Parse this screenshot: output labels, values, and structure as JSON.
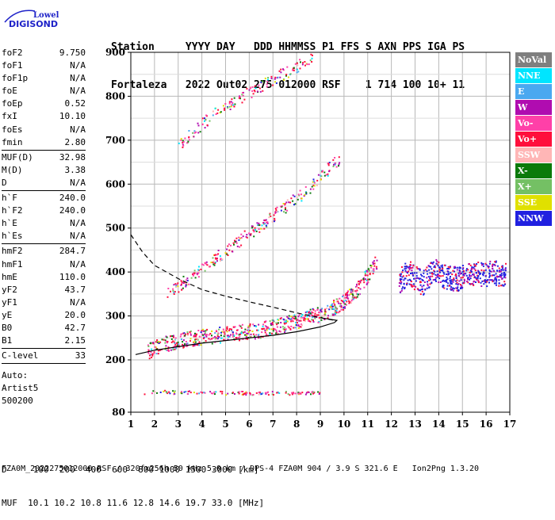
{
  "logo": {
    "line1": "Lowell",
    "line2": "DIGISONDE",
    "color": "#1e22c8"
  },
  "header": {
    "row1": [
      "Station",
      "YYYY",
      "DAY",
      "DDD",
      "HHMMSS",
      "P1",
      "FFS",
      "S",
      "AXN",
      "PPS",
      "IGA",
      "PS"
    ],
    "row2": [
      "Fortaleza",
      "2022",
      "Out02",
      "275",
      "012000",
      "RSF",
      "",
      "1",
      "714",
      "100",
      "10+",
      "11"
    ]
  },
  "params": {
    "group1": [
      {
        "name": "foF2",
        "value": "9.750"
      },
      {
        "name": "foF1",
        "value": "N/A"
      },
      {
        "name": "foF1p",
        "value": "N/A"
      },
      {
        "name": "foE",
        "value": "N/A"
      },
      {
        "name": "foEp",
        "value": "0.52"
      },
      {
        "name": "fxI",
        "value": "10.10"
      },
      {
        "name": "foEs",
        "value": "N/A"
      },
      {
        "name": "fmin",
        "value": "2.80"
      }
    ],
    "group2": [
      {
        "name": "MUF(D)",
        "value": "32.98"
      },
      {
        "name": "M(D)",
        "value": "3.38"
      },
      {
        "name": "D",
        "value": "N/A"
      }
    ],
    "group3": [
      {
        "name": "h`F",
        "value": "240.0"
      },
      {
        "name": "h`F2",
        "value": "240.0"
      },
      {
        "name": "h`E",
        "value": "N/A"
      },
      {
        "name": "h`Es",
        "value": "N/A"
      }
    ],
    "group4": [
      {
        "name": "hmF2",
        "value": "284.7"
      },
      {
        "name": "hmF1",
        "value": "N/A"
      },
      {
        "name": "hmE",
        "value": "110.0"
      },
      {
        "name": "yF2",
        "value": "43.7"
      },
      {
        "name": "yF1",
        "value": "N/A"
      },
      {
        "name": "yE",
        "value": "20.0"
      },
      {
        "name": "B0",
        "value": "42.7"
      },
      {
        "name": "B1",
        "value": "2.15"
      }
    ],
    "group5": [
      {
        "name": "C-level",
        "value": "33"
      }
    ],
    "auto": [
      "Auto:",
      "Artist5",
      "500200"
    ]
  },
  "legend": [
    {
      "label": "NoVal",
      "bg": "#7f7f7f",
      "fg": "#ffffff"
    },
    {
      "label": "NNE",
      "bg": "#00e5ff",
      "fg": "#ffffff"
    },
    {
      "label": "E",
      "bg": "#4aa8f0",
      "fg": "#ffffff"
    },
    {
      "label": "W",
      "bg": "#b00cb0",
      "fg": "#ffffff"
    },
    {
      "label": "Vo-",
      "bg": "#ff40a8",
      "fg": "#ffffff"
    },
    {
      "label": "Vo+",
      "bg": "#ff0f3c",
      "fg": "#ffffff"
    },
    {
      "label": "SSW",
      "bg": "#ffb6b6",
      "fg": "#ffffff"
    },
    {
      "label": "X-",
      "bg": "#0a7a0a",
      "fg": "#ffffff"
    },
    {
      "label": "X+",
      "bg": "#74c064",
      "fg": "#ffffff"
    },
    {
      "label": "SSE",
      "bg": "#e0e000",
      "fg": "#ffffff"
    },
    {
      "label": "NNW",
      "bg": "#2020e0",
      "fg": "#ffffff"
    }
  ],
  "footer": {
    "dist_line": "D     100  200  400  600  800 1000 1500 3000 [km]",
    "muf_line": "MUF  10.1 10.2 10.8 11.6 12.8 14.6 19.7 33.0 [MHz]",
    "file_line": "FZA0M_2022275012000.RSF / 320fx256h 50 kHz 5.0 km / DPS-4 FZA0M 904 / 3.9 S 321.6 E   Ion2Png 1.3.20"
  },
  "chart_data": {
    "type": "scatter",
    "title": "",
    "xlabel": "",
    "ylabel": "",
    "xlim": [
      1,
      17
    ],
    "ylim": [
      80,
      900
    ],
    "x_ticks": [
      1,
      2,
      3,
      4,
      5,
      6,
      7,
      8,
      9,
      10,
      11,
      12,
      13,
      14,
      15,
      16,
      17
    ],
    "y_ticks": [
      80,
      200,
      300,
      400,
      500,
      600,
      700,
      800,
      900
    ],
    "grid": true,
    "legend_position": "right",
    "traces": [
      {
        "name": "O-mode F2 trace",
        "points": [
          [
            1.7,
            220
          ],
          [
            2.0,
            228
          ],
          [
            2.5,
            238
          ],
          [
            3.0,
            245
          ],
          [
            3.5,
            250
          ],
          [
            4.0,
            254
          ],
          [
            4.5,
            257
          ],
          [
            5.0,
            260
          ],
          [
            5.5,
            263
          ],
          [
            6.0,
            266
          ],
          [
            6.5,
            270
          ],
          [
            7.0,
            276
          ],
          [
            7.5,
            283
          ],
          [
            8.0,
            290
          ],
          [
            8.5,
            298
          ],
          [
            9.0,
            306
          ],
          [
            9.5,
            318
          ],
          [
            10.0,
            335
          ],
          [
            10.5,
            360
          ],
          [
            11.0,
            395
          ],
          [
            11.4,
            430
          ]
        ]
      },
      {
        "name": "second hop trace",
        "points": [
          [
            2.5,
            350
          ],
          [
            3.5,
            390
          ],
          [
            4.5,
            430
          ],
          [
            5.5,
            470
          ],
          [
            6.5,
            510
          ],
          [
            7.5,
            550
          ],
          [
            8.5,
            590
          ],
          [
            9.2,
            630
          ],
          [
            9.8,
            660
          ]
        ]
      },
      {
        "name": "third hop trace",
        "points": [
          [
            3.0,
            690
          ],
          [
            4.0,
            740
          ],
          [
            5.0,
            780
          ],
          [
            6.0,
            810
          ],
          [
            7.0,
            840
          ],
          [
            8.0,
            870
          ],
          [
            8.7,
            895
          ]
        ]
      },
      {
        "name": "spread echoes 12-17 MHz",
        "points": [
          [
            12.3,
            380
          ],
          [
            12.7,
            400
          ],
          [
            13.3,
            375
          ],
          [
            13.8,
            405
          ],
          [
            14.3,
            390
          ],
          [
            14.8,
            385
          ],
          [
            15.3,
            400
          ],
          [
            15.8,
            395
          ],
          [
            16.3,
            400
          ],
          [
            16.8,
            395
          ]
        ]
      },
      {
        "name": "low altitude echoes",
        "points": [
          [
            1.5,
            125
          ],
          [
            2.0,
            127
          ],
          [
            2.5,
            128
          ],
          [
            3.0,
            126
          ],
          [
            3.5,
            127
          ],
          [
            4.0,
            126
          ],
          [
            4.5,
            127
          ],
          [
            5.0,
            125
          ],
          [
            5.5,
            126
          ],
          [
            6.0,
            124
          ],
          [
            7.0,
            125
          ],
          [
            8.0,
            125
          ],
          [
            9.0,
            125
          ]
        ]
      }
    ],
    "profile_dashed": [
      [
        1.0,
        485
      ],
      [
        1.5,
        445
      ],
      [
        2.0,
        415
      ],
      [
        3.0,
        385
      ],
      [
        4.0,
        360
      ],
      [
        5.0,
        345
      ],
      [
        6.0,
        332
      ],
      [
        7.0,
        320
      ],
      [
        8.0,
        307
      ],
      [
        9.0,
        296
      ],
      [
        9.6,
        290
      ]
    ],
    "profile_solid": [
      [
        1.2,
        212
      ],
      [
        2.0,
        222
      ],
      [
        3.0,
        230
      ],
      [
        4.0,
        238
      ],
      [
        5.0,
        244
      ],
      [
        6.0,
        250
      ],
      [
        7.0,
        256
      ],
      [
        8.0,
        264
      ],
      [
        9.0,
        275
      ],
      [
        9.6,
        285
      ],
      [
        9.7,
        290
      ],
      [
        9.0,
        296
      ]
    ]
  }
}
